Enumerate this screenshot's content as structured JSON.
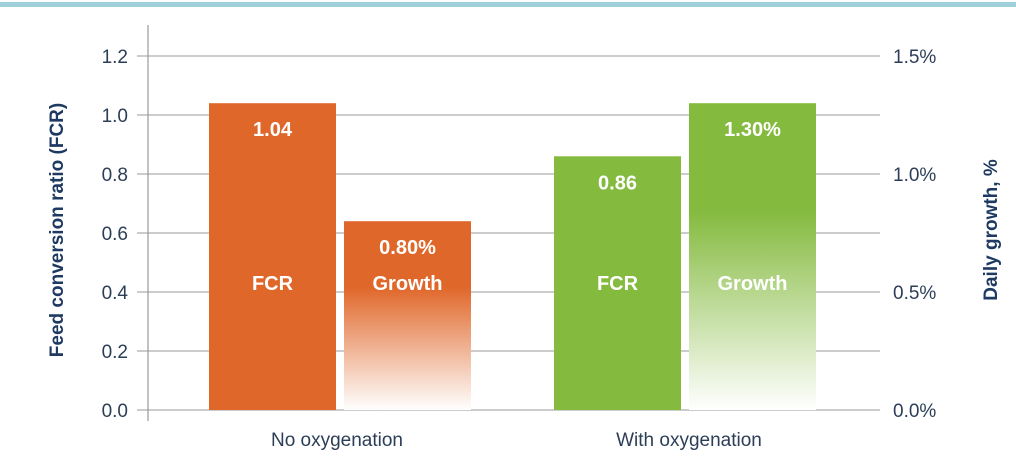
{
  "chart_data": {
    "type": "bar",
    "categories": [
      "No oxygenation",
      "With oxygenation"
    ],
    "ylabel": "Feed conversion ratio (FCR)",
    "y2label": "Daily growth, %",
    "ylim": [
      0,
      1.2
    ],
    "y2lim": [
      0,
      1.5
    ],
    "yticks": [
      "0.0",
      "0.2",
      "0.4",
      "0.6",
      "0.8",
      "1.0",
      "1.2"
    ],
    "y2ticks": [
      "0.0%",
      "0.5%",
      "1.0%",
      "1.5%"
    ],
    "grid": true,
    "series": [
      {
        "name": "FCR",
        "axis": "left",
        "values": [
          1.04,
          0.86
        ],
        "value_labels": [
          "1.04",
          "0.86"
        ]
      },
      {
        "name": "Growth",
        "axis": "right",
        "values": [
          0.8,
          1.3
        ],
        "value_labels": [
          "0.80%",
          "1.30%"
        ]
      }
    ],
    "colors": {
      "No oxygenation": "#e0672a",
      "With oxygenation": "#84ba3e",
      "text": "#2c3e57",
      "axis_label": "#1e3a62",
      "top_stripe": "#9fd0dc",
      "grid": "#999999"
    }
  }
}
